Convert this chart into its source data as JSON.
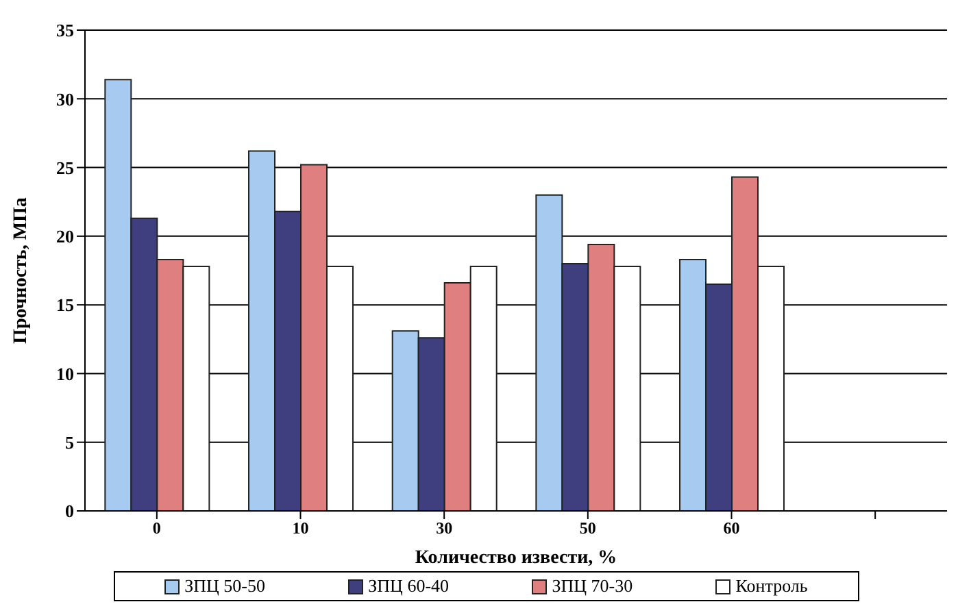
{
  "chart_data": {
    "type": "bar",
    "xlabel": "Количество извести, %",
    "ylabel": "Прочность, МПа",
    "categories": [
      "0",
      "10",
      "30",
      "50",
      "60",
      null
    ],
    "series": [
      {
        "name": "ЗПЦ 50-50",
        "color": "#a6caf0",
        "values": [
          31.4,
          26.2,
          13.1,
          23.0,
          18.3,
          null
        ]
      },
      {
        "name": "ЗПЦ 60-40",
        "color": "#3f3f7f",
        "values": [
          21.3,
          21.8,
          12.6,
          18.0,
          16.5,
          null
        ]
      },
      {
        "name": "ЗПЦ 70-30",
        "color": "#e07f7f",
        "values": [
          18.3,
          25.2,
          16.6,
          19.4,
          24.3,
          null
        ]
      },
      {
        "name": "Контроль",
        "color": "#ffffff",
        "values": [
          17.8,
          17.8,
          17.8,
          17.8,
          17.8,
          null
        ]
      }
    ],
    "ylim": [
      0,
      35
    ],
    "yticks": [
      0,
      5,
      10,
      15,
      20,
      25,
      30,
      35
    ],
    "grid": "y",
    "legend": "bottom"
  }
}
